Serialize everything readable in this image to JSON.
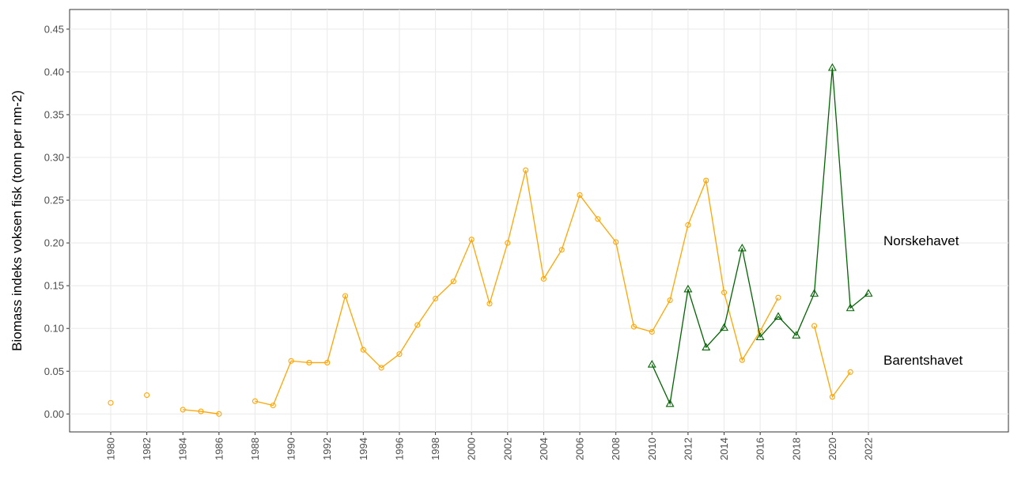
{
  "chart_data": {
    "type": "line",
    "y_label": "Biomass indeks voksen fisk (tonn per nm-2)",
    "xlim": [
      1977.72,
      2029.76
    ],
    "ylim": [
      -0.021,
      0.473
    ],
    "xticks": [
      1980,
      1982,
      1984,
      1986,
      1988,
      1990,
      1992,
      1994,
      1996,
      1998,
      2000,
      2002,
      2004,
      2006,
      2008,
      2010,
      2012,
      2014,
      2016,
      2018,
      2020,
      2022
    ],
    "yticks": [
      {
        "value": 0,
        "label": "0.00"
      },
      {
        "value": 0.05,
        "label": "0.05"
      },
      {
        "value": 0.1,
        "label": "0.10"
      },
      {
        "value": 0.15,
        "label": "0.15"
      },
      {
        "value": 0.2,
        "label": "0.20"
      },
      {
        "value": 0.25,
        "label": "0.25"
      },
      {
        "value": 0.3,
        "label": "0.30"
      },
      {
        "value": 0.35,
        "label": "0.35"
      },
      {
        "value": 0.4,
        "label": "0.40"
      },
      {
        "value": 0.45,
        "label": "0.45"
      }
    ],
    "grid": true,
    "series": [
      {
        "name": "Barentshavet",
        "color": "#FFA500",
        "marker": "circle",
        "x": [
          1980,
          1981,
          1982,
          1983,
          1984,
          1985,
          1986,
          1987,
          1988,
          1989,
          1990,
          1991,
          1992,
          1993,
          1994,
          1995,
          1996,
          1997,
          1998,
          1999,
          2000,
          2001,
          2002,
          2003,
          2004,
          2005,
          2006,
          2007,
          2008,
          2009,
          2010,
          2011,
          2012,
          2013,
          2014,
          2015,
          2016,
          2017,
          2018,
          2019,
          2020,
          2021
        ],
        "values": [
          0.013,
          null,
          0.022,
          null,
          0.005,
          0.003,
          0.0,
          null,
          0.015,
          0.01,
          0.062,
          0.06,
          0.06,
          0.138,
          0.075,
          0.054,
          0.07,
          0.104,
          0.135,
          0.155,
          0.204,
          0.129,
          0.2,
          0.285,
          0.158,
          0.192,
          0.256,
          0.228,
          0.201,
          0.102,
          0.096,
          0.133,
          0.221,
          0.273,
          0.142,
          0.063,
          0.097,
          0.136,
          null,
          0.103,
          0.02,
          0.049
        ]
      },
      {
        "name": "Norskehavet",
        "color": "#006400",
        "marker": "triangle",
        "x": [
          2010,
          2011,
          2012,
          2013,
          2014,
          2015,
          2016,
          2017,
          2018,
          2019,
          2020,
          2021,
          2022
        ],
        "values": [
          0.058,
          0.012,
          0.146,
          0.078,
          0.101,
          0.194,
          0.09,
          0.114,
          0.092,
          0.141,
          0.405,
          0.124,
          0.141
        ]
      }
    ]
  }
}
